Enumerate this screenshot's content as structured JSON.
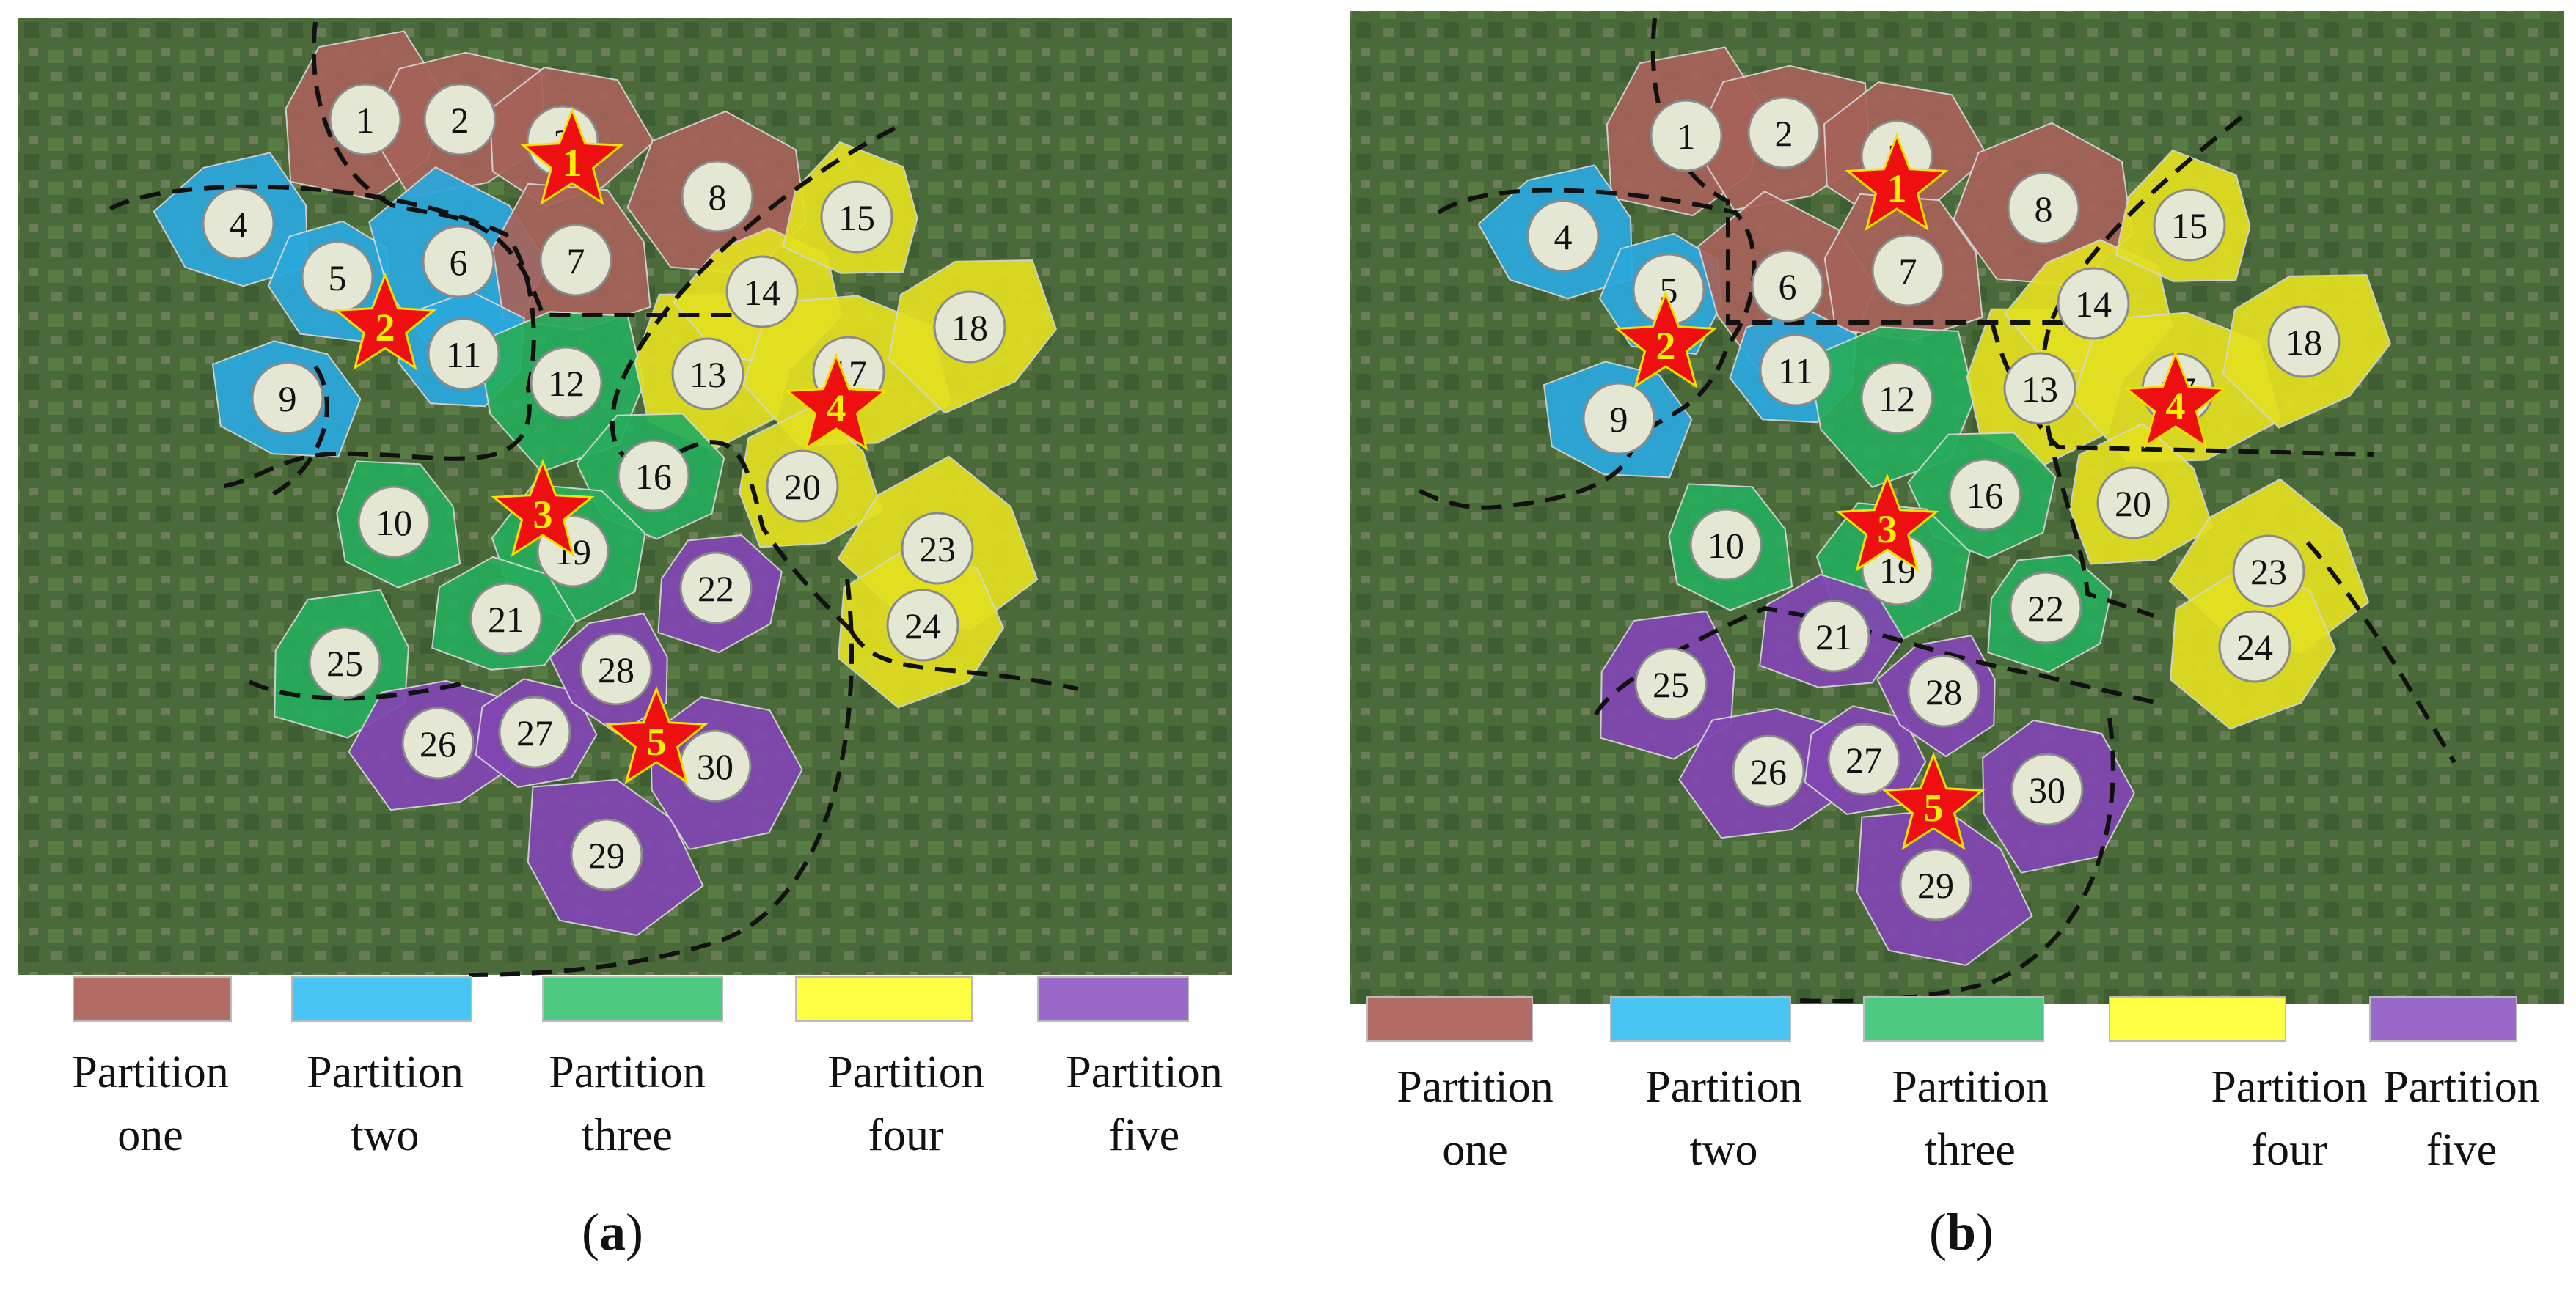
{
  "partition_colors": {
    "1": "#a7625a",
    "2": "#2aa8dd",
    "3": "#27ad5c",
    "4": "#e3e021",
    "5": "#8246b3"
  },
  "legend": [
    {
      "key": "1",
      "line1": "Partition",
      "line2": "one",
      "color": "#b36b65"
    },
    {
      "key": "2",
      "line1": "Partition",
      "line2": "two",
      "color": "#49c5f4"
    },
    {
      "key": "3",
      "line1": "Partition",
      "line2": "three",
      "color": "#4ec981"
    },
    {
      "key": "4",
      "line1": "Partition",
      "line2": "four",
      "color": "#ffff44"
    },
    {
      "key": "5",
      "line1": "Partition",
      "line2": "five",
      "color": "#9968c8"
    }
  ],
  "panels": [
    {
      "id": "a",
      "label": "a",
      "nodes": [
        {
          "n": "1",
          "p": "1"
        },
        {
          "n": "2",
          "p": "1"
        },
        {
          "n": "3",
          "p": "1"
        },
        {
          "n": "4",
          "p": "2"
        },
        {
          "n": "5",
          "p": "2"
        },
        {
          "n": "6",
          "p": "2"
        },
        {
          "n": "7",
          "p": "1"
        },
        {
          "n": "8",
          "p": "1"
        },
        {
          "n": "9",
          "p": "2"
        },
        {
          "n": "10",
          "p": "3"
        },
        {
          "n": "11",
          "p": "2"
        },
        {
          "n": "12",
          "p": "3"
        },
        {
          "n": "13",
          "p": "4"
        },
        {
          "n": "14",
          "p": "4"
        },
        {
          "n": "15",
          "p": "4"
        },
        {
          "n": "16",
          "p": "3"
        },
        {
          "n": "17",
          "p": "4"
        },
        {
          "n": "18",
          "p": "4"
        },
        {
          "n": "19",
          "p": "3"
        },
        {
          "n": "20",
          "p": "4"
        },
        {
          "n": "21",
          "p": "3"
        },
        {
          "n": "22",
          "p": "5"
        },
        {
          "n": "23",
          "p": "4"
        },
        {
          "n": "24",
          "p": "4"
        },
        {
          "n": "25",
          "p": "3"
        },
        {
          "n": "26",
          "p": "5"
        },
        {
          "n": "27",
          "p": "5"
        },
        {
          "n": "28",
          "p": "5"
        },
        {
          "n": "29",
          "p": "5"
        },
        {
          "n": "30",
          "p": "5"
        }
      ],
      "stars": [
        {
          "label": "1",
          "at": "3"
        },
        {
          "label": "2",
          "at": "5"
        },
        {
          "label": "3",
          "at": "19"
        },
        {
          "label": "4",
          "at": "17"
        },
        {
          "label": "5",
          "at": "30"
        }
      ]
    },
    {
      "id": "b",
      "label": "b",
      "nodes": [
        {
          "n": "1",
          "p": "1"
        },
        {
          "n": "2",
          "p": "1"
        },
        {
          "n": "3",
          "p": "1"
        },
        {
          "n": "4",
          "p": "2"
        },
        {
          "n": "5",
          "p": "2"
        },
        {
          "n": "6",
          "p": "1"
        },
        {
          "n": "7",
          "p": "1"
        },
        {
          "n": "8",
          "p": "1"
        },
        {
          "n": "9",
          "p": "2"
        },
        {
          "n": "10",
          "p": "3"
        },
        {
          "n": "11",
          "p": "2"
        },
        {
          "n": "12",
          "p": "3"
        },
        {
          "n": "13",
          "p": "4"
        },
        {
          "n": "14",
          "p": "4"
        },
        {
          "n": "15",
          "p": "4"
        },
        {
          "n": "16",
          "p": "3"
        },
        {
          "n": "17",
          "p": "4"
        },
        {
          "n": "18",
          "p": "4"
        },
        {
          "n": "19",
          "p": "3"
        },
        {
          "n": "20",
          "p": "4"
        },
        {
          "n": "21",
          "p": "5"
        },
        {
          "n": "22",
          "p": "3"
        },
        {
          "n": "23",
          "p": "4"
        },
        {
          "n": "24",
          "p": "4"
        },
        {
          "n": "25",
          "p": "5"
        },
        {
          "n": "26",
          "p": "5"
        },
        {
          "n": "27",
          "p": "5"
        },
        {
          "n": "28",
          "p": "5"
        },
        {
          "n": "29",
          "p": "5"
        },
        {
          "n": "30",
          "p": "5"
        }
      ],
      "stars": [
        {
          "label": "1",
          "at": "3"
        },
        {
          "label": "2",
          "at": "5"
        },
        {
          "label": "3",
          "at": "19"
        },
        {
          "label": "4",
          "at": "17"
        },
        {
          "label": "5",
          "at": "27"
        }
      ]
    }
  ]
}
